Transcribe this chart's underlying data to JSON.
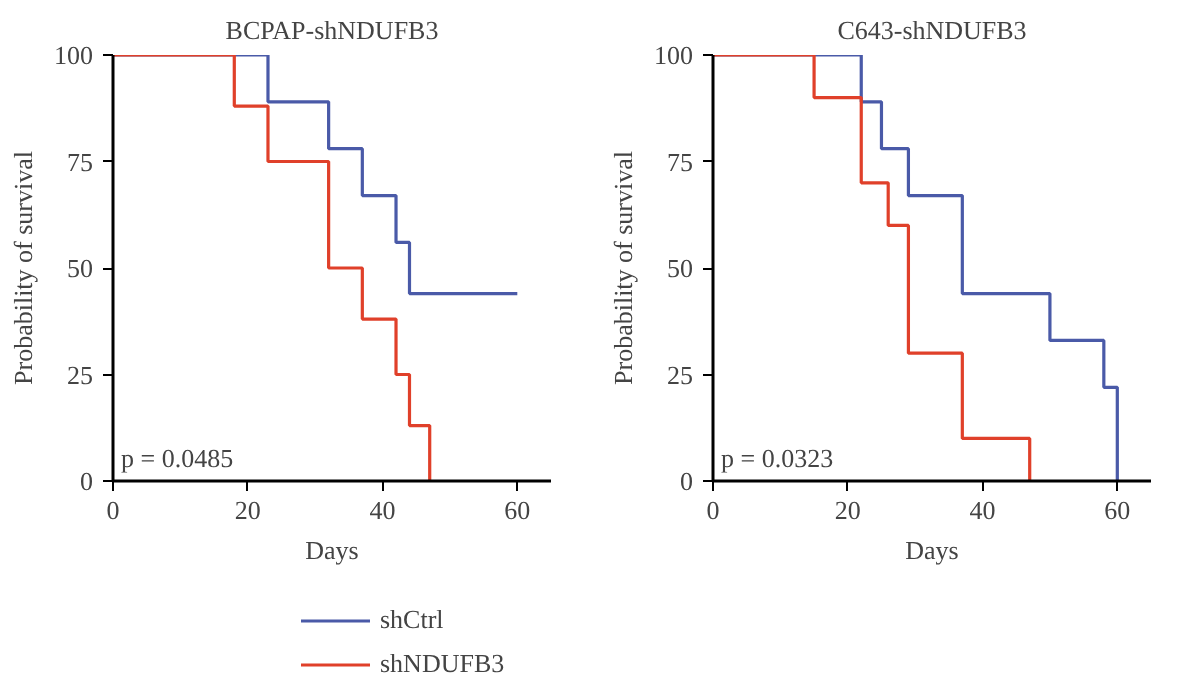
{
  "chart_data": [
    {
      "type": "step",
      "title": "BCPAP-shNDUFB3",
      "xlabel": "Days",
      "ylabel": "Probability of survival",
      "annotations": [
        "p = 0.0485"
      ],
      "xlim": [
        0,
        65
      ],
      "xticks": [
        0,
        20,
        40,
        60
      ],
      "ylim": [
        0,
        100
      ],
      "yticks": [
        0,
        25,
        50,
        75,
        100
      ],
      "grid": false,
      "legend": "bottom",
      "series": [
        {
          "name": "shCtrl",
          "color": "#4a5aa8",
          "x": [
            0,
            23,
            32,
            37,
            42,
            44,
            60
          ],
          "values": [
            100,
            89,
            78,
            67,
            56,
            44,
            44
          ]
        },
        {
          "name": "shNDUFB3",
          "color": "#e0402a",
          "x": [
            0,
            18,
            23,
            32,
            37,
            42,
            44,
            47
          ],
          "values": [
            100,
            88,
            75,
            50,
            38,
            25,
            13,
            0
          ]
        }
      ]
    },
    {
      "type": "step",
      "title": "C643-shNDUFB3",
      "xlabel": "Days",
      "ylabel": "Probability of survival",
      "annotations": [
        "p = 0.0323"
      ],
      "xlim": [
        0,
        65
      ],
      "xticks": [
        0,
        20,
        40,
        60
      ],
      "ylim": [
        0,
        100
      ],
      "yticks": [
        0,
        25,
        50,
        75,
        100
      ],
      "grid": false,
      "series": [
        {
          "color": "#4a5aa8",
          "x": [
            0,
            22,
            25,
            29,
            37,
            50,
            58,
            60
          ],
          "values": [
            100,
            89,
            78,
            67,
            44,
            33,
            22,
            0
          ]
        },
        {
          "color": "#e0402a",
          "x": [
            0,
            15,
            22,
            26,
            29,
            37,
            47
          ],
          "values": [
            100,
            90,
            70,
            60,
            30,
            10,
            0
          ]
        }
      ]
    }
  ]
}
